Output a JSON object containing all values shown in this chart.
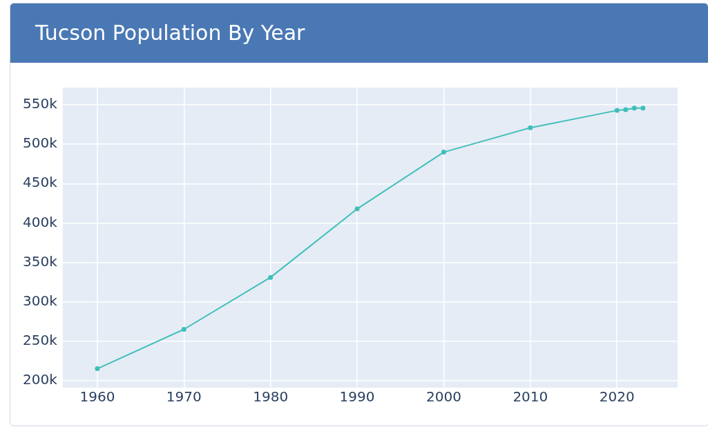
{
  "chart_data": {
    "type": "line",
    "title": "Tucson Population By Year",
    "x": [
      1960,
      1970,
      1980,
      1990,
      2000,
      2010,
      2020,
      2021,
      2022,
      2023
    ],
    "series": [
      {
        "color": "#3fbfb8",
        "values": [
          215000,
          265000,
          331000,
          418000,
          490000,
          521000,
          543000,
          544000,
          546000,
          546000
        ]
      }
    ],
    "xlim": [
      1956,
      2027
    ],
    "xticks": [
      1960,
      1970,
      1980,
      1990,
      2000,
      2010,
      2020
    ],
    "ylim": [
      191000,
      572000
    ],
    "yticks": [
      {
        "value": 200000,
        "label": "200k"
      },
      {
        "value": 250000,
        "label": "250k"
      },
      {
        "value": 300000,
        "label": "300k"
      },
      {
        "value": 350000,
        "label": "350k"
      },
      {
        "value": 400000,
        "label": "400k"
      },
      {
        "value": 450000,
        "label": "450k"
      },
      {
        "value": 500000,
        "label": "500k"
      },
      {
        "value": 550000,
        "label": "550k"
      }
    ],
    "grid": true,
    "legend": false,
    "marker": "circle",
    "line_style": "solid"
  }
}
